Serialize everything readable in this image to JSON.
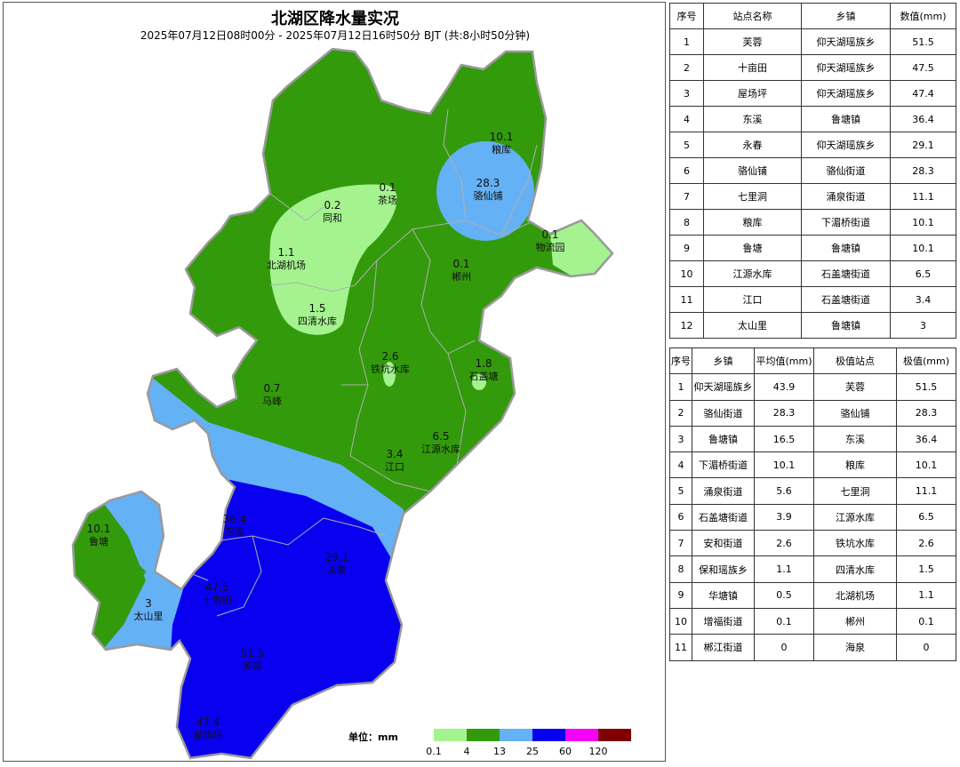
{
  "map": {
    "title": "北湖区降水量实况",
    "subtitle": "2025年07月12日08时00分 - 2025年07月12日16时50分 BJT (共:8小时50分钟)",
    "stations": [
      {
        "value": "10.1",
        "name": "粮库"
      },
      {
        "value": "28.3",
        "name": "骆仙铺"
      },
      {
        "value": "0.1",
        "name": "茶场"
      },
      {
        "value": "0.2",
        "name": "同和"
      },
      {
        "value": "1.1",
        "name": "北湖机场"
      },
      {
        "value": "1.5",
        "name": "四清水库"
      },
      {
        "value": "0.1",
        "name": "物流园"
      },
      {
        "value": "0.1",
        "name": "郴州"
      },
      {
        "value": "2.6",
        "name": "铁坑水库"
      },
      {
        "value": "1.8",
        "name": "石盖塘"
      },
      {
        "value": "0.7",
        "name": "马峰"
      },
      {
        "value": "6.5",
        "name": "江源水库"
      },
      {
        "value": "3.4",
        "name": "江口"
      },
      {
        "value": "36.4",
        "name": "东溪"
      },
      {
        "value": "10.1",
        "name": "鲁塘"
      },
      {
        "value": "29.1",
        "name": "永春"
      },
      {
        "value": "47.5",
        "name": "十亩田"
      },
      {
        "value": "3",
        "name": "太山里"
      },
      {
        "value": "51.5",
        "name": "芙蓉"
      },
      {
        "value": "47.4",
        "name": "屋场坪"
      }
    ],
    "colors": {
      "light_green": "#a4f38f",
      "green": "#339a0c",
      "light_blue": "#64b1f6",
      "blue": "#0a00f0",
      "magenta": "#f700f7",
      "maroon": "#800000",
      "boundary": "#b0b0b0"
    }
  },
  "legend": {
    "unit_label": "单位：mm",
    "ticks": [
      "0.1",
      "4",
      "13",
      "25",
      "60",
      "120"
    ]
  },
  "station_table": {
    "headers": [
      "序号",
      "站点名称",
      "乡镇",
      "数值(mm)"
    ],
    "rows": [
      [
        "1",
        "芙蓉",
        "仰天湖瑶族乡",
        "51.5"
      ],
      [
        "2",
        "十亩田",
        "仰天湖瑶族乡",
        "47.5"
      ],
      [
        "3",
        "屋场坪",
        "仰天湖瑶族乡",
        "47.4"
      ],
      [
        "4",
        "东溪",
        "鲁塘镇",
        "36.4"
      ],
      [
        "5",
        "永春",
        "仰天湖瑶族乡",
        "29.1"
      ],
      [
        "6",
        "骆仙铺",
        "骆仙街道",
        "28.3"
      ],
      [
        "7",
        "七里洞",
        "涌泉街道",
        "11.1"
      ],
      [
        "8",
        "粮库",
        "下湄桥街道",
        "10.1"
      ],
      [
        "9",
        "鲁塘",
        "鲁塘镇",
        "10.1"
      ],
      [
        "10",
        "江源水库",
        "石盖塘街道",
        "6.5"
      ],
      [
        "11",
        "江口",
        "石盖塘街道",
        "3.4"
      ],
      [
        "12",
        "太山里",
        "鲁塘镇",
        "3"
      ]
    ]
  },
  "town_table": {
    "headers": [
      "序号",
      "乡镇",
      "平均值(mm)",
      "极值站点",
      "极值(mm)"
    ],
    "rows": [
      [
        "1",
        "仰天湖瑶族乡",
        "43.9",
        "芙蓉",
        "51.5"
      ],
      [
        "2",
        "骆仙街道",
        "28.3",
        "骆仙铺",
        "28.3"
      ],
      [
        "3",
        "鲁塘镇",
        "16.5",
        "东溪",
        "36.4"
      ],
      [
        "4",
        "下湄桥街道",
        "10.1",
        "粮库",
        "10.1"
      ],
      [
        "5",
        "涌泉街道",
        "5.6",
        "七里洞",
        "11.1"
      ],
      [
        "6",
        "石盖塘街道",
        "3.9",
        "江源水库",
        "6.5"
      ],
      [
        "7",
        "安和街道",
        "2.6",
        "铁坑水库",
        "2.6"
      ],
      [
        "8",
        "保和瑶族乡",
        "1.1",
        "四清水库",
        "1.5"
      ],
      [
        "9",
        "华塘镇",
        "0.5",
        "北湖机场",
        "1.1"
      ],
      [
        "10",
        "增福街道",
        "0.1",
        "郴州",
        "0.1"
      ],
      [
        "11",
        "郴江街道",
        "0",
        "海泉",
        "0"
      ]
    ]
  }
}
